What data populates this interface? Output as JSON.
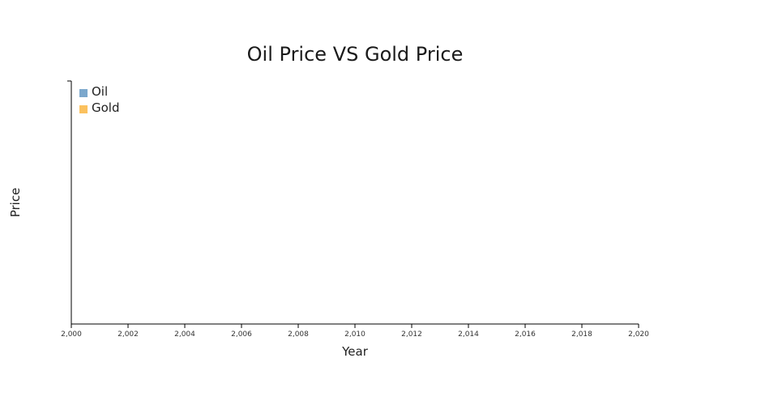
{
  "chart_data": {
    "type": "bar",
    "title": "Oil Price VS Gold Price",
    "xlabel": "Year",
    "ylabel": "Price",
    "xlim": [
      2000,
      2020
    ],
    "x_ticks": [
      2000,
      2002,
      2004,
      2006,
      2008,
      2010,
      2012,
      2014,
      2016,
      2018,
      2020
    ],
    "x_tick_labels": [
      "2,000",
      "2,002",
      "2,004",
      "2,006",
      "2,008",
      "2,010",
      "2,012",
      "2,014",
      "2,016",
      "2,018",
      "2,020"
    ],
    "grid": false,
    "legend_position": "top-left",
    "series": [
      {
        "name": "Oil",
        "color": "#7BA7CC",
        "values": []
      },
      {
        "name": "Gold",
        "color": "#FBC15E",
        "values": []
      }
    ]
  }
}
